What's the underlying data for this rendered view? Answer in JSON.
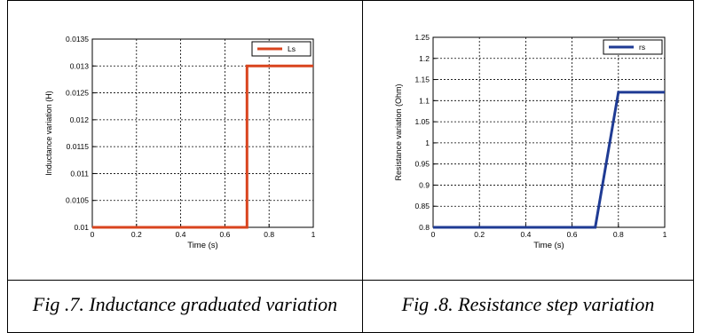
{
  "captions": {
    "left": "Fig .7. Inductance graduated variation",
    "right": "Fig .8. Resistance step variation"
  },
  "chart_data": [
    {
      "type": "line",
      "xlabel": "Time (s)",
      "ylabel": "Inductance variation  (H)",
      "xlim": [
        0,
        1
      ],
      "ylim": [
        0.01,
        0.0135
      ],
      "xticks": [
        0,
        0.2,
        0.4,
        0.6,
        0.8,
        1
      ],
      "xtick_labels": [
        "0",
        "0.2",
        "0.4",
        "0.6",
        "0.8",
        "1"
      ],
      "yticks": [
        0.01,
        0.0105,
        0.011,
        0.0115,
        0.012,
        0.0125,
        0.013,
        0.0135
      ],
      "ytick_labels": [
        "0.01",
        "0.0105",
        "0.011",
        "0.0115",
        "0.012",
        "0.0125",
        "0.013",
        "0.0135"
      ],
      "grid": true,
      "legend_position": "top-right",
      "series": [
        {
          "name": "Ls",
          "color": "#d9441e",
          "x": [
            0,
            0.7,
            0.7,
            1
          ],
          "y": [
            0.01,
            0.01,
            0.013,
            0.013
          ]
        }
      ]
    },
    {
      "type": "line",
      "xlabel": "Time (s)",
      "ylabel": "Resistance variation (Ohm)",
      "xlim": [
        0,
        1
      ],
      "ylim": [
        0.8,
        1.25
      ],
      "xticks": [
        0,
        0.2,
        0.4,
        0.6,
        0.8,
        1
      ],
      "xtick_labels": [
        "0",
        "0.2",
        "0.4",
        "0.6",
        "0.8",
        "1"
      ],
      "yticks": [
        0.8,
        0.85,
        0.9,
        0.95,
        1,
        1.05,
        1.1,
        1.15,
        1.2,
        1.25
      ],
      "ytick_labels": [
        "0.8",
        "0.85",
        "0.9",
        "0.95",
        "1",
        "1.05",
        "1.1",
        "1.15",
        "1.2",
        "1.25"
      ],
      "grid": true,
      "legend_position": "top-right",
      "series": [
        {
          "name": "rs",
          "color": "#1f3b94",
          "x": [
            0,
            0.7,
            0.8,
            1
          ],
          "y": [
            0.8,
            0.8,
            1.12,
            1.12
          ]
        }
      ]
    }
  ]
}
